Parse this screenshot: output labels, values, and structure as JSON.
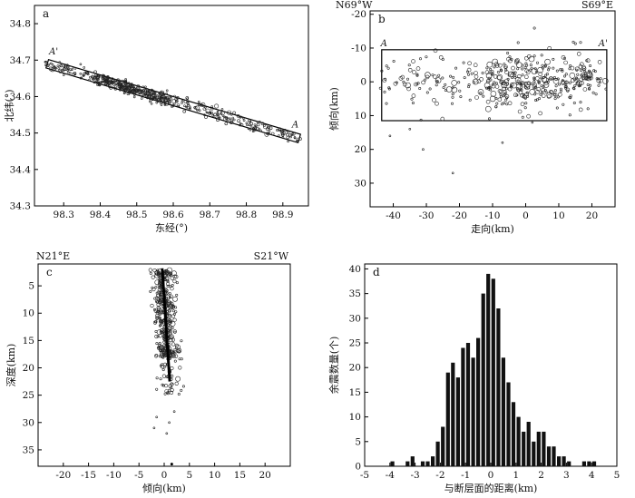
{
  "chart_data": [
    {
      "panel": "a",
      "type": "scatter",
      "xlabel": "东经(°)",
      "ylabel": "北纬(°)",
      "xlim": [
        98.22,
        98.97
      ],
      "ylim": [
        34.3,
        34.85
      ],
      "xticks": [
        "98.3",
        "98.4",
        "98.5",
        "98.6",
        "98.7",
        "98.8",
        "98.9"
      ],
      "yticks": [
        "34.3",
        "34.4",
        "34.5",
        "34.6",
        "34.7",
        "34.8"
      ],
      "annotations": [
        "A'",
        "A"
      ],
      "profile_box": {
        "start": [
          98.255,
          34.69
        ],
        "end": [
          98.945,
          34.485
        ],
        "half_width_deg": 0.012
      }
    },
    {
      "panel": "b",
      "type": "scatter",
      "xlabel": "走向(km)",
      "ylabel": "倾向(km)",
      "xlim": [
        -47,
        27
      ],
      "ylim": [
        -21,
        37
      ],
      "y_inverted": true,
      "xticks": [
        "-40",
        "-30",
        "-20",
        "-10",
        "0",
        "10",
        "20"
      ],
      "yticks": [
        "-20",
        "-10",
        "0",
        "10",
        "20",
        "30"
      ],
      "direction_labels": [
        "N69°W",
        "S69°E"
      ],
      "annotations": [
        "A",
        "A'"
      ],
      "box": {
        "x": [
          -43.5,
          24.5
        ],
        "y": [
          -9.5,
          11.5
        ]
      }
    },
    {
      "panel": "c",
      "type": "scatter",
      "xlabel": "倾向(km)",
      "ylabel": "深度(km)",
      "xlim": [
        -25,
        25
      ],
      "ylim": [
        1,
        38
      ],
      "y_inverted": true,
      "xticks": [
        "-20",
        "-15",
        "-10",
        "-5",
        "0",
        "5",
        "10",
        "15",
        "20"
      ],
      "yticks": [
        "5",
        "10",
        "15",
        "20",
        "25",
        "30",
        "35"
      ],
      "direction_labels": [
        "N21°E",
        "S21°W"
      ],
      "fault_line": {
        "from": [
          -0.4,
          1.8
        ],
        "to": [
          1.1,
          22.5
        ]
      }
    },
    {
      "panel": "d",
      "type": "bar",
      "xlabel": "与断层面的距离(km)",
      "ylabel": "余震数量(个)",
      "xlim": [
        -5,
        5
      ],
      "ylim": [
        0,
        41
      ],
      "xticks": [
        "-5",
        "-4",
        "-3",
        "-2",
        "-1",
        "0",
        "1",
        "2",
        "3",
        "4",
        "5"
      ],
      "yticks": [
        "0",
        "5",
        "10",
        "15",
        "20",
        "25",
        "30",
        "35",
        "40"
      ],
      "bin_width": 0.2,
      "bin_centers": [
        -3.9,
        -3.7,
        -3.5,
        -3.3,
        -3.1,
        -2.9,
        -2.7,
        -2.5,
        -2.3,
        -2.1,
        -1.9,
        -1.7,
        -1.5,
        -1.3,
        -1.1,
        -0.9,
        -0.7,
        -0.5,
        -0.3,
        -0.1,
        0.1,
        0.3,
        0.5,
        0.7,
        0.9,
        1.1,
        1.3,
        1.5,
        1.7,
        1.9,
        2.1,
        2.3,
        2.5,
        2.7,
        2.9,
        3.1,
        3.3,
        3.5,
        3.7,
        3.9,
        4.1
      ],
      "values": [
        1,
        0,
        0,
        1,
        2,
        0,
        1,
        1,
        2,
        5,
        8,
        19,
        21,
        18,
        24,
        25,
        22,
        26,
        35,
        39,
        38,
        32,
        22,
        17,
        13,
        10,
        7,
        9,
        5,
        7,
        7,
        4,
        4,
        2,
        2,
        1,
        0,
        0,
        1,
        1,
        1
      ]
    }
  ]
}
